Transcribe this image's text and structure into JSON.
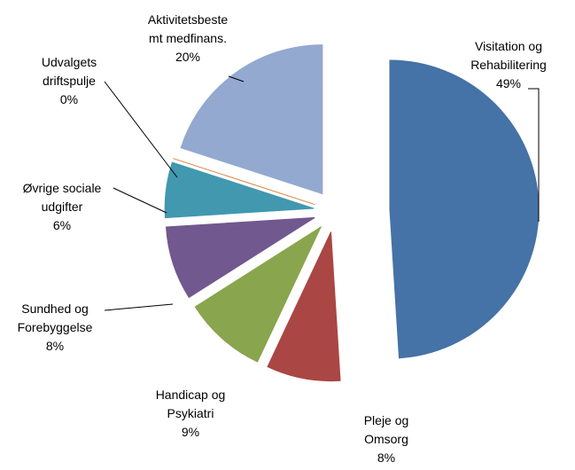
{
  "chart_data": {
    "type": "pie",
    "categories": [
      "Visitation og Rehabilitering",
      "Pleje og Omsorg",
      "Handicap og Psykiatri",
      "Sundhed og Forebyggelse",
      "Øvrige sociale udgifter",
      "Udvalgets driftspulje",
      "Aktivitetsbestemt medfinans."
    ],
    "values": [
      49,
      8,
      9,
      8,
      6,
      0,
      20
    ],
    "value_labels": [
      "49%",
      "8%",
      "9%",
      "8%",
      "6%",
      "0%",
      "20%"
    ],
    "colors": [
      "#4572a7",
      "#aa4643",
      "#89a54e",
      "#71588f",
      "#4198af",
      "#db843d",
      "#93a9cf"
    ]
  }
}
